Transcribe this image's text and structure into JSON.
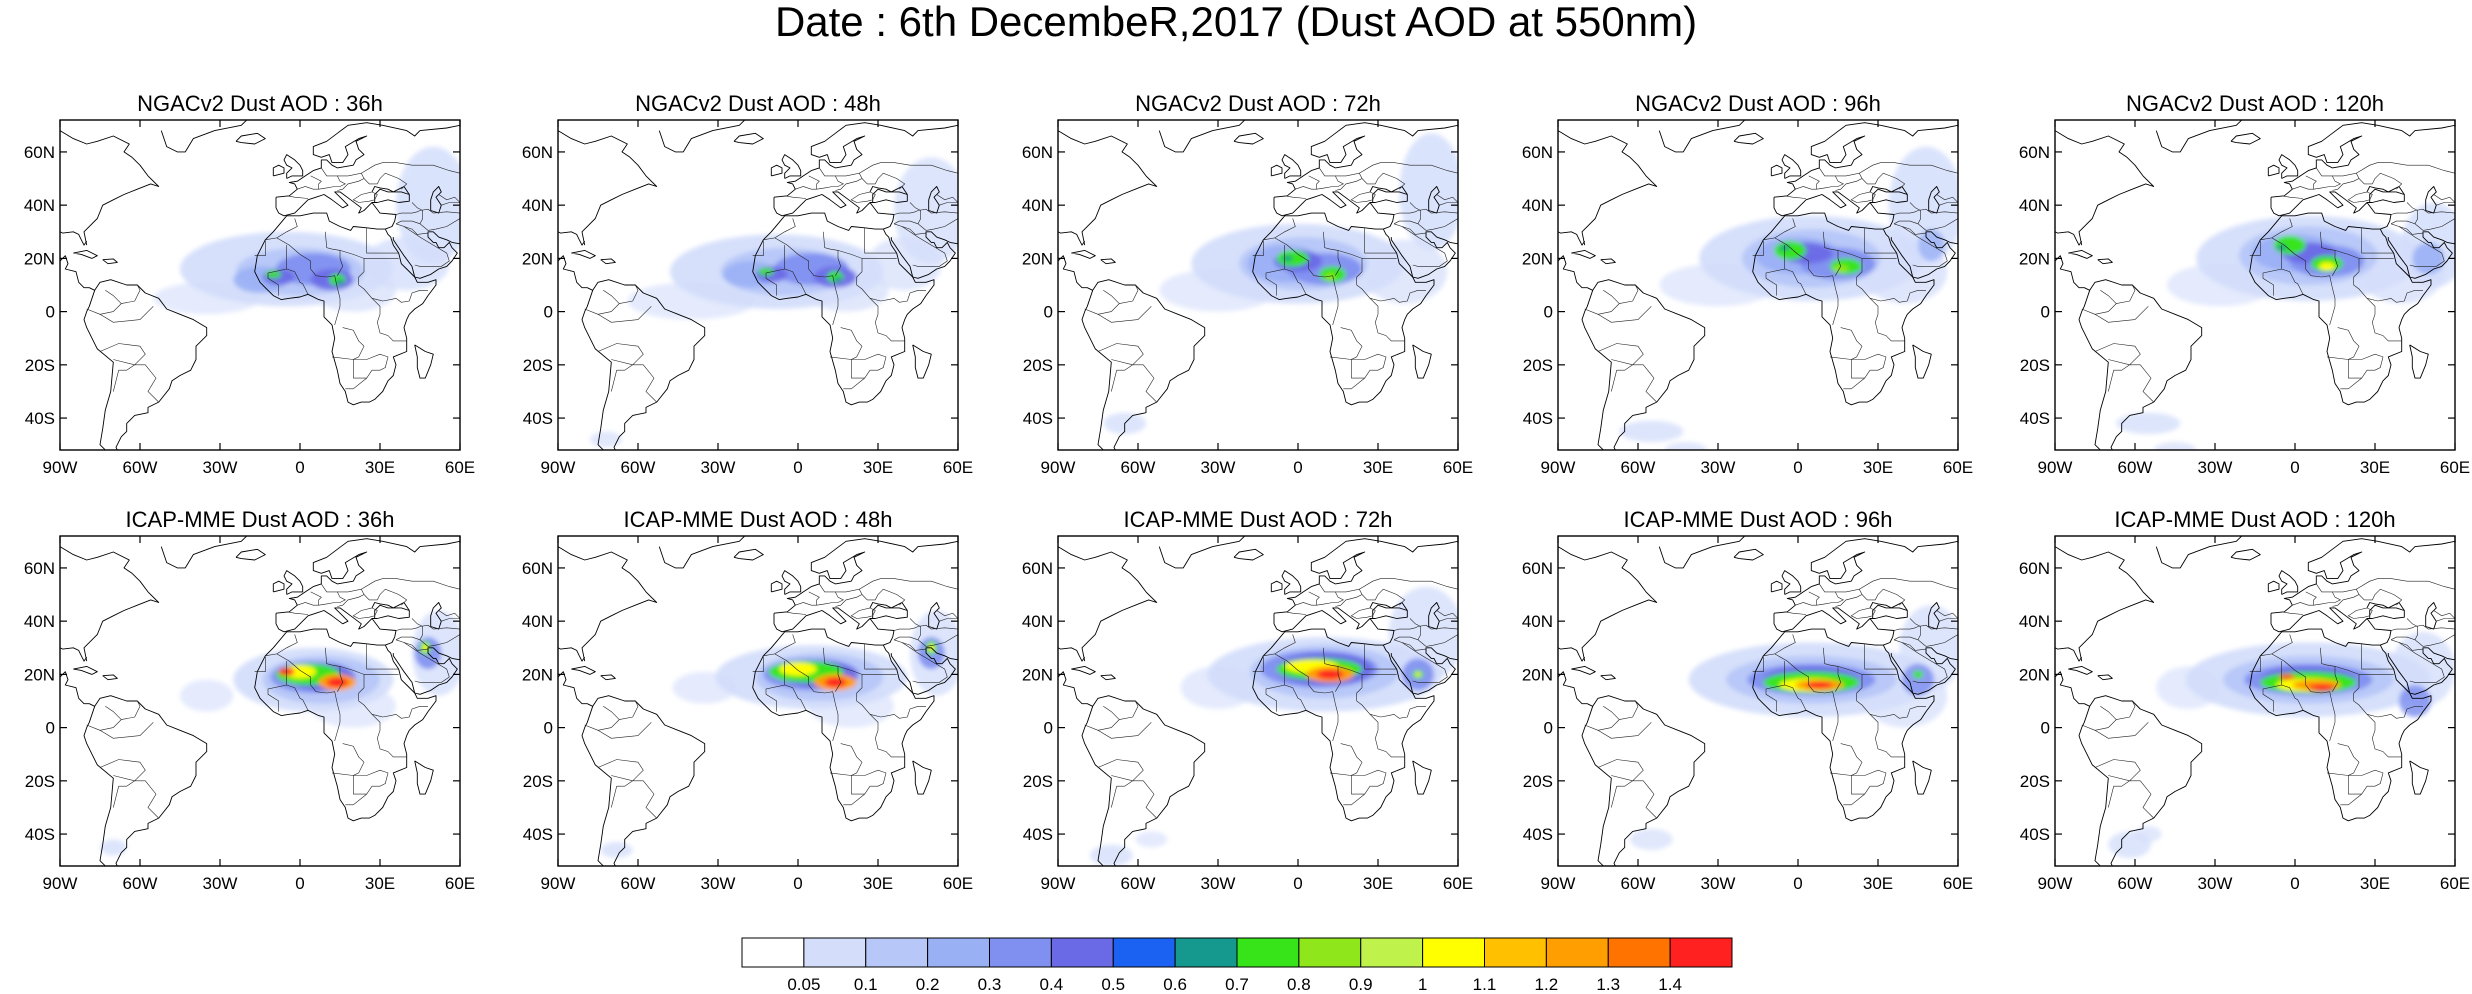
{
  "title": "Date : 6th DecembeR,2017 (Dust AOD at 550nm)",
  "map": {
    "lon_range": [
      -90,
      60
    ],
    "lat_range": [
      -52,
      72
    ],
    "lon_ticks": [
      "90W",
      "60W",
      "30W",
      "0",
      "30E",
      "60E"
    ],
    "lat_ticks": [
      "60N",
      "40N",
      "20N",
      "0",
      "20S",
      "40S"
    ]
  },
  "panels": [
    {
      "title": "NGACv2 Dust AOD : 36h"
    },
    {
      "title": "NGACv2 Dust AOD : 48h"
    },
    {
      "title": "NGACv2 Dust AOD : 72h"
    },
    {
      "title": "NGACv2 Dust AOD : 96h"
    },
    {
      "title": "NGACv2 Dust AOD : 120h"
    },
    {
      "title": "ICAP-MME Dust AOD : 36h"
    },
    {
      "title": "ICAP-MME Dust AOD : 48h"
    },
    {
      "title": "ICAP-MME Dust AOD : 72h"
    },
    {
      "title": "ICAP-MME Dust AOD : 96h"
    },
    {
      "title": "ICAP-MME Dust AOD : 120h"
    }
  ],
  "colorbar": {
    "labels": [
      "0.05",
      "0.1",
      "0.2",
      "0.3",
      "0.4",
      "0.5",
      "0.6",
      "0.7",
      "0.8",
      "0.9",
      "1",
      "1.1",
      "1.2",
      "1.3",
      "1.4"
    ],
    "colors": [
      "#ffffff",
      "#d4defb",
      "#b7c7f8",
      "#9ab0f5",
      "#8090f0",
      "#6a6ae6",
      "#1c62f2",
      "#15998e",
      "#37e41a",
      "#8fe61a",
      "#bff24a",
      "#ffff00",
      "#ffc000",
      "#ff9e00",
      "#ff7400",
      "#ff2020"
    ]
  }
}
